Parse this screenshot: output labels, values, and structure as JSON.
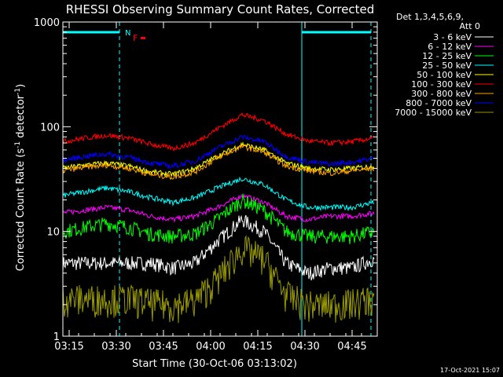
{
  "chart_data": {
    "type": "line",
    "title": "RHESSI Observing Summary Count Rates, Corrected",
    "xlabel": "Start Time (30-Oct-06 03:13:02)",
    "ylabel_main": "Corrected Count Rate (s",
    "ylabel_sup1": "-1",
    "ylabel_mid": " detector",
    "ylabel_sup2": "-1",
    "ylabel_end": ")",
    "y_scale": "log",
    "ylim": [
      1,
      1000
    ],
    "xlim": [
      "03:13",
      "04:53"
    ],
    "x_ticks": [
      "03:15",
      "03:30",
      "03:45",
      "04:00",
      "04:15",
      "04:30",
      "04:45"
    ],
    "y_ticks": [
      "1",
      "10",
      "100",
      "1000"
    ],
    "legend_header": [
      "Det 1,3,4,5,6,9,",
      "Att 0"
    ],
    "legend_position": "right",
    "timestamp": "17-Oct-2021 15:07",
    "night_markers": {
      "flag_label": "N",
      "bar": [
        "03:13",
        "03:31"
      ],
      "bar2": [
        "04:29",
        "04:51"
      ],
      "dashed_lines": [
        "03:31",
        "04:51"
      ],
      "solid_lines": [
        "03:13",
        "04:29"
      ]
    },
    "flare_marker": {
      "label": "F",
      "time": "03:37",
      "level": 800
    },
    "series": [
      {
        "name": "3 - 6 keV",
        "color": "#ffffff",
        "values": [
          5,
          5,
          5,
          5,
          5,
          4.5,
          5,
          8,
          13,
          10,
          5,
          4,
          4.5,
          4.5,
          5.5
        ]
      },
      {
        "name": "6 - 12 keV",
        "color": "#ff00ff",
        "values": [
          15,
          16,
          17,
          16,
          14,
          13,
          14,
          17,
          22,
          19,
          14,
          13,
          14,
          14,
          15
        ]
      },
      {
        "name": "12 - 25 keV",
        "color": "#00ff00",
        "values": [
          10,
          11,
          12,
          11,
          9.5,
          9,
          9.5,
          13,
          20,
          16,
          10,
          9,
          9,
          9,
          10
        ]
      },
      {
        "name": "25 - 50 keV",
        "color": "#00ffff",
        "values": [
          22,
          24,
          26,
          24,
          21,
          19,
          21,
          26,
          32,
          28,
          20,
          17,
          17,
          17,
          19
        ]
      },
      {
        "name": "50 - 100 keV",
        "color": "#ffff00",
        "values": [
          40,
          43,
          45,
          42,
          37,
          35,
          40,
          52,
          68,
          60,
          45,
          40,
          39,
          40,
          42
        ]
      },
      {
        "name": "100 - 300 keV",
        "color": "#ff0000",
        "values": [
          72,
          78,
          83,
          78,
          68,
          62,
          70,
          95,
          130,
          115,
          85,
          73,
          70,
          72,
          78
        ]
      },
      {
        "name": "300 - 800 keV",
        "color": "#ffa500",
        "values": [
          38,
          41,
          43,
          40,
          35,
          33,
          37,
          50,
          65,
          57,
          42,
          38,
          36,
          38,
          40
        ]
      },
      {
        "name": "800 - 7000 keV",
        "color": "#0000ff",
        "values": [
          48,
          52,
          55,
          51,
          45,
          42,
          47,
          62,
          80,
          72,
          52,
          46,
          44,
          46,
          50
        ]
      },
      {
        "name": "7000 - 15000 keV",
        "color": "#999900",
        "values": [
          2.3,
          2.3,
          2.3,
          2.3,
          2.1,
          2.0,
          2.2,
          3.5,
          7,
          5.5,
          2.5,
          2.0,
          2.0,
          2.1,
          2.3
        ]
      }
    ],
    "x": [
      "03:13",
      "03:20",
      "03:27",
      "03:34",
      "03:41",
      "03:48",
      "03:55",
      "04:02",
      "04:10",
      "04:17",
      "04:24",
      "04:31",
      "04:38",
      "04:45",
      "04:52"
    ]
  }
}
